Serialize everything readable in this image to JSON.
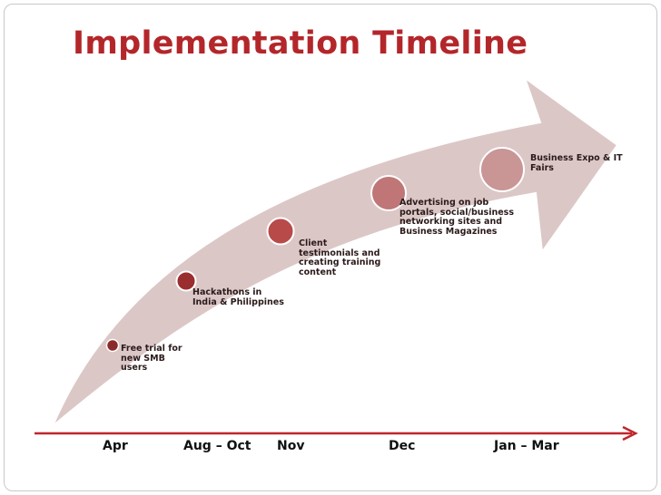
{
  "title": "Implementation Timeline",
  "milestones": [
    {
      "text": "Free trial for new SMB users",
      "color": "#8b2a2a"
    },
    {
      "text": "Hackathons in India & Philippines",
      "color": "#9a2d2d"
    },
    {
      "text": "Client testimonials and creating training content",
      "color": "#b84a4a"
    },
    {
      "text": "Advertising on job portals, social/business networking sites and Business Magazines",
      "color": "#c07676"
    },
    {
      "text": "Business Expo & IT Fairs",
      "color": "#c99595"
    }
  ],
  "periods": [
    "Apr",
    "Aug – Oct",
    "Nov",
    "Dec",
    "Jan – Mar"
  ],
  "colors": {
    "title": "#b3262a",
    "arrow_fill": "#dcc7c7",
    "axis_line": "#c0262c"
  }
}
